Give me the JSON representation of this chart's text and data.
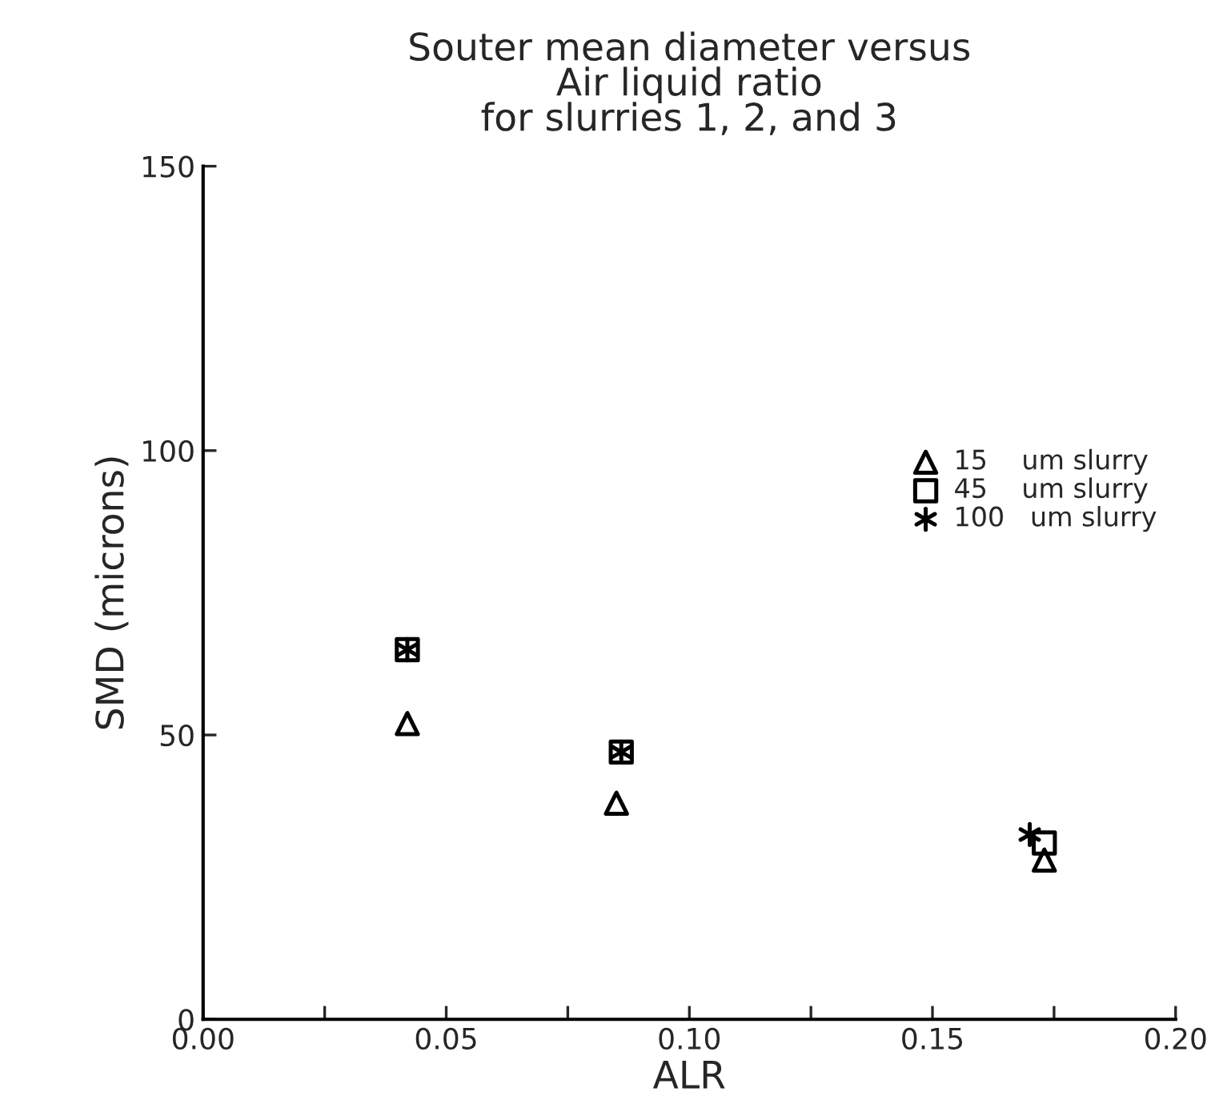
{
  "chart_data": {
    "type": "scatter",
    "title": "Souter mean diameter versus\nAir liquid ratio\nfor slurries 1, 2, and 3",
    "xlabel": "ALR",
    "ylabel": "SMD (microns)",
    "xlim": [
      0,
      0.2
    ],
    "ylim": [
      0,
      150
    ],
    "xticks": [
      {
        "value": 0,
        "label": "0.00"
      },
      {
        "value": 0.025,
        "label": null
      },
      {
        "value": 0.05,
        "label": "0.05"
      },
      {
        "value": 0.075,
        "label": null
      },
      {
        "value": 0.1,
        "label": "0.10"
      },
      {
        "value": 0.125,
        "label": null
      },
      {
        "value": 0.15,
        "label": "0.15"
      },
      {
        "value": 0.175,
        "label": null
      },
      {
        "value": 0.2,
        "label": "0.20"
      }
    ],
    "yticks": [
      0,
      50,
      100,
      150
    ],
    "grid": false,
    "legend": "right",
    "series": [
      {
        "name": "15    um slurry",
        "color": "#000000",
        "marker": "triangle",
        "x": [
          0.042,
          0.085,
          0.173
        ],
        "values": [
          52,
          38,
          28
        ]
      },
      {
        "name": "45    um slurry",
        "color": "#000000",
        "marker": "square",
        "x": [
          0.042,
          0.086,
          0.173
        ],
        "values": [
          65,
          47,
          31
        ]
      },
      {
        "name": "100   um slurry",
        "color": "#000000",
        "marker": "cross",
        "x": [
          0.042,
          0.086,
          0.17
        ],
        "values": [
          65,
          47,
          32.5
        ]
      }
    ]
  }
}
